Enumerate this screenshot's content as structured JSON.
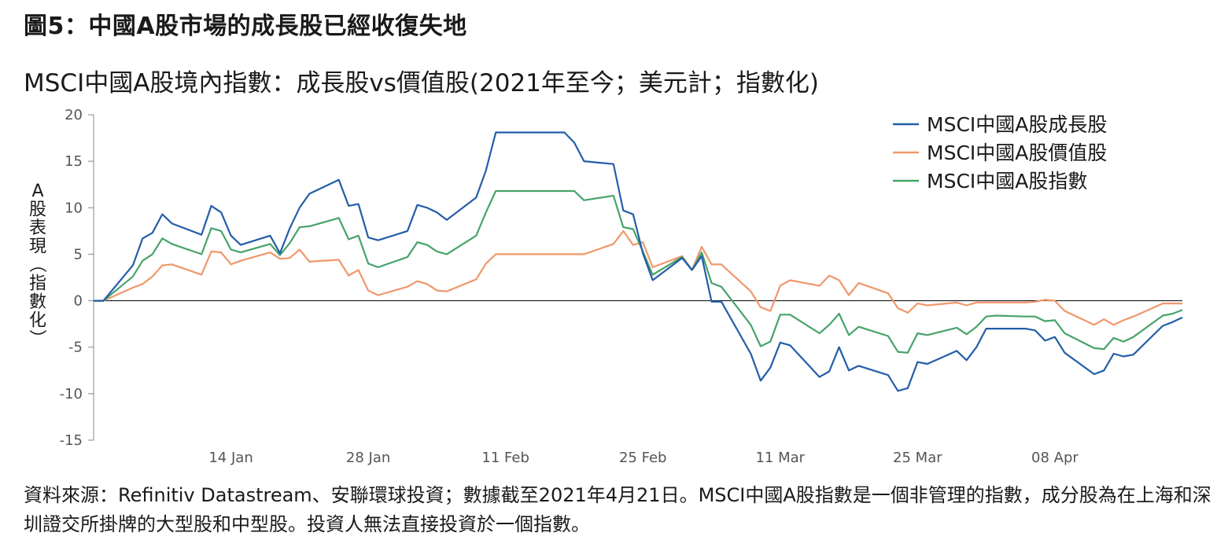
{
  "figure_title": "圖5：中國A股市場的成長股已經收復失地",
  "source_note": "資料來源：Refinitiv Datastream、安聯環球投資；數據截至2021年4月21日。MSCI中國A股指數是一個非管理的指數，成分股為在上海和深圳證交所掛牌的大型股和中型股。投資人無法直接投資於一個指數。",
  "colors": {
    "growth": "#235da8",
    "value": "#f0976b",
    "index": "#46a36a",
    "axis": "#888888",
    "zero_line": "#1a1a1a"
  },
  "chart_data": {
    "type": "line",
    "title": "MSCI中國A股境內指數：成長股vs價值股(2021年至今；美元計；指數化)",
    "ylabel": "A股表現（指數化）",
    "ylim": [
      -15,
      20
    ],
    "yticks": [
      20,
      15,
      10,
      5,
      0,
      -5,
      -10,
      -15
    ],
    "xlim": [
      "2020-12-31",
      "2021-04-21"
    ],
    "xticks": [
      {
        "date": "2021-01-14",
        "label": "14 Jan"
      },
      {
        "date": "2021-01-28",
        "label": "28 Jan"
      },
      {
        "date": "2021-02-11",
        "label": "11 Feb"
      },
      {
        "date": "2021-02-25",
        "label": "25 Feb"
      },
      {
        "date": "2021-03-11",
        "label": "11 Mar"
      },
      {
        "date": "2021-03-25",
        "label": "25 Mar"
      },
      {
        "date": "2021-04-08",
        "label": "08 Apr"
      }
    ],
    "grid": false,
    "legend_position": "top-right",
    "x": [
      "2020-12-31",
      "2021-01-01",
      "2021-01-04",
      "2021-01-05",
      "2021-01-06",
      "2021-01-07",
      "2021-01-08",
      "2021-01-11",
      "2021-01-12",
      "2021-01-13",
      "2021-01-14",
      "2021-01-15",
      "2021-01-18",
      "2021-01-19",
      "2021-01-20",
      "2021-01-21",
      "2021-01-22",
      "2021-01-25",
      "2021-01-26",
      "2021-01-27",
      "2021-01-28",
      "2021-01-29",
      "2021-02-01",
      "2021-02-02",
      "2021-02-03",
      "2021-02-04",
      "2021-02-05",
      "2021-02-08",
      "2021-02-09",
      "2021-02-10",
      "2021-02-17",
      "2021-02-18",
      "2021-02-19",
      "2021-02-22",
      "2021-02-23",
      "2021-02-24",
      "2021-02-25",
      "2021-02-26",
      "2021-03-01",
      "2021-03-02",
      "2021-03-03",
      "2021-03-04",
      "2021-03-05",
      "2021-03-08",
      "2021-03-09",
      "2021-03-10",
      "2021-03-11",
      "2021-03-12",
      "2021-03-15",
      "2021-03-16",
      "2021-03-17",
      "2021-03-18",
      "2021-03-19",
      "2021-03-22",
      "2021-03-23",
      "2021-03-24",
      "2021-03-25",
      "2021-03-26",
      "2021-03-29",
      "2021-03-30",
      "2021-03-31",
      "2021-04-01",
      "2021-04-02",
      "2021-04-05",
      "2021-04-06",
      "2021-04-07",
      "2021-04-08",
      "2021-04-09",
      "2021-04-12",
      "2021-04-13",
      "2021-04-14",
      "2021-04-15",
      "2021-04-16",
      "2021-04-19",
      "2021-04-20",
      "2021-04-21"
    ],
    "series": [
      {
        "name": "MSCI中國A股成長股",
        "color": "#235da8",
        "values": [
          0,
          0,
          3.8,
          6.7,
          7.3,
          9.3,
          8.3,
          7.1,
          10.2,
          9.5,
          7.0,
          6.0,
          7.0,
          5.1,
          7.8,
          10.0,
          11.5,
          13.0,
          10.2,
          10.4,
          6.8,
          6.5,
          7.5,
          10.3,
          10.0,
          9.5,
          8.7,
          11.1,
          14.0,
          18.1,
          18.1,
          17.0,
          15.0,
          14.7,
          9.7,
          9.3,
          5.1,
          2.2,
          4.6,
          3.3,
          4.8,
          -0.1,
          -0.1,
          -5.7,
          -8.6,
          -7.2,
          -4.5,
          -4.8,
          -8.2,
          -7.6,
          -5.0,
          -7.5,
          -7.0,
          -8.0,
          -9.7,
          -9.4,
          -6.6,
          -6.8,
          -5.4,
          -6.4,
          -5.0,
          -3.0,
          -3.0,
          -3.0,
          -3.2,
          -4.3,
          -3.9,
          -5.6,
          -7.9,
          -7.5,
          -5.7,
          -6.0,
          -5.8,
          -2.7,
          -2.3,
          -1.8
        ]
      },
      {
        "name": "MSCI中國A股價值股",
        "color": "#f0976b",
        "values": [
          0,
          0,
          1.4,
          1.8,
          2.6,
          3.8,
          3.9,
          2.8,
          5.3,
          5.2,
          3.9,
          4.3,
          5.2,
          4.5,
          4.6,
          5.5,
          4.2,
          4.4,
          2.7,
          3.3,
          1.1,
          0.6,
          1.5,
          2.1,
          1.8,
          1.1,
          1.0,
          2.3,
          4.0,
          5.0,
          5.0,
          5.0,
          5.0,
          6.1,
          7.5,
          6.0,
          6.3,
          3.6,
          4.8,
          3.3,
          5.8,
          3.9,
          3.9,
          1.0,
          -0.7,
          -1.1,
          1.6,
          2.2,
          1.6,
          2.7,
          2.2,
          0.6,
          1.9,
          0.8,
          -0.8,
          -1.3,
          -0.3,
          -0.5,
          -0.2,
          -0.5,
          -0.2,
          -0.2,
          -0.2,
          -0.2,
          -0.1,
          0.1,
          0,
          -1.1,
          -2.6,
          -2.0,
          -2.6,
          -2.1,
          -1.7,
          -0.3,
          -0.3,
          -0.3
        ]
      },
      {
        "name": "MSCI中國A股指數",
        "color": "#46a36a",
        "values": [
          0,
          0,
          2.6,
          4.3,
          5.0,
          6.7,
          6.1,
          5.0,
          7.8,
          7.5,
          5.5,
          5.2,
          6.1,
          4.9,
          6.2,
          7.9,
          8.0,
          8.9,
          6.6,
          7.0,
          4.0,
          3.6,
          4.7,
          6.3,
          6.0,
          5.3,
          5.0,
          7.0,
          9.5,
          11.8,
          11.8,
          11.8,
          10.8,
          11.3,
          7.9,
          7.7,
          5.3,
          2.8,
          4.7,
          3.3,
          5.2,
          1.9,
          1.5,
          -2.6,
          -4.9,
          -4.4,
          -1.5,
          -1.5,
          -3.5,
          -2.6,
          -1.4,
          -3.7,
          -2.8,
          -3.8,
          -5.5,
          -5.6,
          -3.5,
          -3.7,
          -2.9,
          -3.6,
          -2.8,
          -1.7,
          -1.6,
          -1.7,
          -1.7,
          -2.2,
          -2.1,
          -3.5,
          -5.1,
          -5.2,
          -4.0,
          -4.4,
          -3.9,
          -1.6,
          -1.4,
          -1.0
        ]
      }
    ]
  }
}
